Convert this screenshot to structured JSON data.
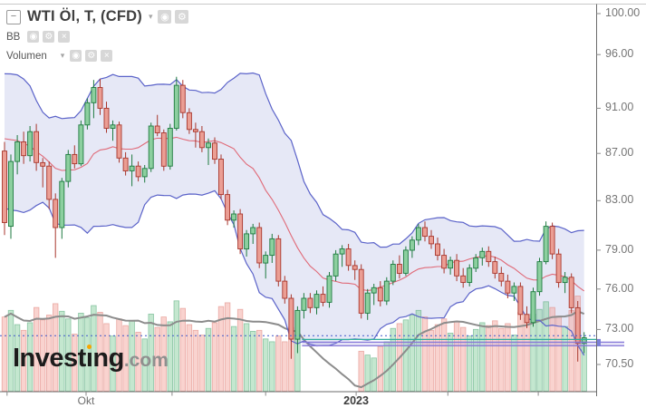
{
  "legend": {
    "title": "WTI Öl, T, (CFD)",
    "indicators": [
      {
        "label": "BB",
        "caret": false
      },
      {
        "label": "Volumen",
        "caret": true
      }
    ]
  },
  "icons": {
    "collapse": "−",
    "caret": "▾",
    "visibility": "◉",
    "settings": "⚙",
    "close": "×"
  },
  "watermark": {
    "brand_prefix": "Invest",
    "brand_i": "ı",
    "brand_suffix": "ng",
    "tld": ".com"
  },
  "axes": {
    "price": {
      "labels": [
        {
          "value": 100.0,
          "text": "100.00"
        },
        {
          "value": 96.0,
          "text": "96.00"
        },
        {
          "value": 91.0,
          "text": "91.00"
        },
        {
          "value": 87.0,
          "text": "87.00"
        },
        {
          "value": 83.0,
          "text": "83.00"
        },
        {
          "value": 79.0,
          "text": "79.00"
        },
        {
          "value": 76.0,
          "text": "76.00"
        },
        {
          "value": 73.0,
          "text": "73.00"
        },
        {
          "value": 70.5,
          "text": "70.50"
        }
      ]
    },
    "time": {
      "ticks": [
        {
          "index": 0.4,
          "text": ""
        },
        {
          "index": 12.8,
          "text": "Okt"
        },
        {
          "index": 26.3,
          "text": ""
        },
        {
          "index": 41.0,
          "text": ""
        },
        {
          "index": 55.2,
          "text": "2023",
          "bold": true
        },
        {
          "index": 69.6,
          "text": ""
        },
        {
          "index": 83.8,
          "text": ""
        }
      ]
    }
  },
  "palette": {
    "up": "#1d7a3f",
    "up_fill": "#8ccf9f",
    "down": "#a8362c",
    "down_fill": "#eb9e94",
    "bb_line": "#5b63c9",
    "bb_fill": "rgba(101,110,200,0.16)",
    "bb_mid": "#e06a78",
    "vol_up": "rgba(137,207,159,0.5)",
    "vol_down": "rgba(243,168,160,0.5)",
    "vol_up_line": "rgba(70,160,110,0.55)",
    "vol_down_line": "rgba(220,120,112,0.55)",
    "vol_ma": "#8c8c8c",
    "dashed": "#3f57c9",
    "teal": "#2fae9d",
    "zone_line": "#8678d8",
    "zone_fill": "rgba(150,140,220,0.25)",
    "axis_line": "#6b6b6b",
    "border": "#c9c9c9",
    "logo_dot": "#f7a600"
  },
  "chart_data": {
    "type": "candlestick",
    "title": "WTI Öl, T, (CFD)",
    "y_scale": "log",
    "ylim": [
      68.6,
      101.0
    ],
    "candles": [
      [
        87.2,
        88.0,
        80.2,
        81.2
      ],
      [
        80.9,
        86.9,
        79.9,
        86.3
      ],
      [
        86.3,
        88.6,
        85.2,
        88.0
      ],
      [
        88.0,
        88.9,
        86.1,
        86.8
      ],
      [
        86.8,
        89.4,
        86.3,
        88.9
      ],
      [
        88.9,
        89.6,
        85.5,
        86.2
      ],
      [
        86.2,
        86.6,
        84.1,
        85.9
      ],
      [
        85.9,
        86.3,
        82.3,
        83.1
      ],
      [
        83.1,
        83.6,
        78.4,
        80.8
      ],
      [
        80.8,
        84.9,
        79.9,
        84.6
      ],
      [
        84.6,
        87.3,
        84.1,
        86.9
      ],
      [
        86.9,
        87.7,
        85.7,
        86.1
      ],
      [
        86.1,
        89.9,
        85.9,
        89.5
      ],
      [
        89.5,
        91.9,
        89.1,
        91.5
      ],
      [
        91.5,
        93.6,
        90.1,
        92.9
      ],
      [
        92.9,
        93.7,
        90.4,
        91.0
      ],
      [
        91.0,
        91.6,
        88.8,
        89.2
      ],
      [
        89.2,
        89.9,
        88.1,
        89.5
      ],
      [
        89.5,
        89.8,
        86.2,
        86.6
      ],
      [
        86.6,
        87.1,
        85.1,
        85.5
      ],
      [
        85.5,
        86.9,
        84.2,
        85.9
      ],
      [
        85.9,
        86.3,
        84.6,
        85.0
      ],
      [
        85.0,
        86.0,
        84.5,
        85.7
      ],
      [
        85.7,
        89.7,
        85.4,
        89.4
      ],
      [
        89.4,
        90.4,
        88.5,
        88.8
      ],
      [
        88.8,
        89.1,
        85.5,
        85.9
      ],
      [
        85.9,
        89.6,
        85.6,
        89.2
      ],
      [
        89.2,
        93.9,
        89.0,
        93.1
      ],
      [
        93.1,
        93.6,
        90.1,
        90.6
      ],
      [
        90.6,
        91.0,
        88.7,
        89.1
      ],
      [
        89.1,
        89.7,
        87.5,
        88.9
      ],
      [
        88.9,
        89.4,
        87.1,
        87.5
      ],
      [
        87.5,
        88.3,
        86.0,
        87.9
      ],
      [
        87.9,
        88.4,
        86.1,
        86.5
      ],
      [
        86.5,
        86.9,
        83.1,
        83.5
      ],
      [
        83.5,
        83.9,
        81.0,
        81.4
      ],
      [
        81.4,
        82.2,
        80.8,
        81.9
      ],
      [
        81.9,
        82.3,
        78.7,
        79.1
      ],
      [
        79.1,
        80.6,
        78.5,
        80.3
      ],
      [
        80.3,
        81.1,
        79.5,
        80.8
      ],
      [
        80.8,
        81.2,
        77.6,
        78.0
      ],
      [
        78.0,
        78.9,
        76.8,
        78.6
      ],
      [
        78.6,
        80.3,
        78.0,
        79.9
      ],
      [
        79.9,
        80.2,
        76.2,
        76.6
      ],
      [
        76.6,
        77.0,
        74.9,
        75.3
      ],
      [
        75.3,
        75.6,
        70.9,
        72.3
      ],
      [
        72.3,
        74.7,
        71.3,
        74.4
      ],
      [
        74.4,
        75.7,
        73.8,
        75.3
      ],
      [
        75.3,
        75.7,
        74.2,
        74.6
      ],
      [
        74.6,
        75.9,
        74.1,
        75.6
      ],
      [
        75.6,
        76.2,
        74.7,
        75.0
      ],
      [
        75.0,
        77.3,
        74.6,
        77.0
      ],
      [
        77.0,
        79.0,
        76.6,
        78.7
      ],
      [
        78.7,
        79.4,
        77.7,
        79.1
      ],
      [
        79.1,
        79.5,
        77.4,
        77.8
      ],
      [
        77.8,
        78.2,
        76.7,
        77.5
      ],
      [
        77.5,
        77.9,
        73.8,
        74.2
      ],
      [
        74.2,
        76.0,
        73.7,
        75.7
      ],
      [
        75.7,
        76.4,
        74.8,
        76.1
      ],
      [
        76.1,
        76.6,
        74.7,
        75.1
      ],
      [
        75.1,
        76.9,
        74.8,
        76.6
      ],
      [
        76.6,
        78.2,
        76.3,
        77.9
      ],
      [
        77.9,
        78.6,
        76.8,
        77.2
      ],
      [
        77.2,
        79.3,
        77.0,
        79.0
      ],
      [
        79.0,
        80.1,
        78.4,
        79.8
      ],
      [
        79.8,
        81.1,
        79.4,
        80.8
      ],
      [
        80.8,
        81.3,
        79.7,
        80.1
      ],
      [
        80.1,
        80.6,
        79.1,
        79.5
      ],
      [
        79.5,
        80.0,
        78.2,
        78.6
      ],
      [
        78.6,
        79.1,
        77.2,
        77.6
      ],
      [
        77.6,
        78.5,
        77.1,
        78.2
      ],
      [
        78.2,
        78.7,
        76.6,
        77.0
      ],
      [
        77.0,
        77.6,
        76.1,
        76.5
      ],
      [
        76.5,
        77.9,
        76.2,
        77.6
      ],
      [
        77.6,
        78.7,
        77.3,
        78.4
      ],
      [
        78.4,
        79.2,
        77.8,
        78.9
      ],
      [
        78.9,
        79.3,
        77.7,
        78.1
      ],
      [
        78.1,
        78.5,
        76.8,
        77.2
      ],
      [
        77.2,
        77.7,
        76.2,
        76.6
      ],
      [
        76.6,
        77.1,
        75.3,
        75.7
      ],
      [
        75.7,
        76.5,
        75.1,
        76.2
      ],
      [
        76.2,
        76.5,
        73.7,
        74.1
      ],
      [
        74.1,
        74.7,
        73.1,
        73.5
      ],
      [
        73.5,
        76.1,
        73.2,
        75.8
      ],
      [
        75.8,
        78.4,
        75.5,
        78.1
      ],
      [
        78.1,
        81.3,
        77.9,
        80.9
      ],
      [
        80.9,
        81.2,
        78.3,
        78.7
      ],
      [
        78.7,
        79.1,
        76.1,
        76.5
      ],
      [
        76.5,
        77.3,
        75.7,
        76.9
      ],
      [
        76.9,
        77.2,
        74.2,
        74.6
      ],
      [
        74.6,
        75.1,
        70.7,
        72.0
      ],
      [
        72.0,
        72.8,
        71.3,
        72.4
      ]
    ],
    "volume": [
      78,
      85,
      70,
      64,
      72,
      88,
      75,
      80,
      92,
      84,
      76,
      60,
      82,
      77,
      90,
      83,
      71,
      58,
      76,
      69,
      74,
      62,
      55,
      81,
      67,
      78,
      73,
      95,
      87,
      70,
      64,
      59,
      66,
      72,
      89,
      93,
      68,
      86,
      71,
      63,
      64,
      55,
      52,
      58,
      52,
      67,
      60,
      0,
      0,
      0,
      0,
      0,
      0,
      0,
      0,
      0,
      42,
      38,
      35,
      47,
      52,
      66,
      71,
      75,
      80,
      85,
      78,
      64,
      70,
      76,
      61,
      73,
      67,
      58,
      65,
      72,
      69,
      74,
      66,
      71,
      59,
      83,
      77,
      81,
      86,
      94,
      88,
      79,
      68,
      85,
      100,
      54
    ],
    "indicators": {
      "bollinger": {
        "name": "BB",
        "period": 14,
        "mult": 2.0,
        "seed_closes": [
          86.0,
          87.5,
          89.0,
          90.5,
          92.0,
          93.0,
          91.5,
          90.0,
          88.5,
          87.0,
          86.5,
          85.8,
          86.5,
          86.9
        ]
      },
      "volume_ma": {
        "period": 10
      }
    },
    "levels": {
      "last_price_dashed": 72.55,
      "teal_line": {
        "value": 72.28,
        "from_index": 47
      },
      "support_zone": {
        "top": 72.08,
        "bottom": 71.82,
        "from_index": 47
      }
    }
  }
}
